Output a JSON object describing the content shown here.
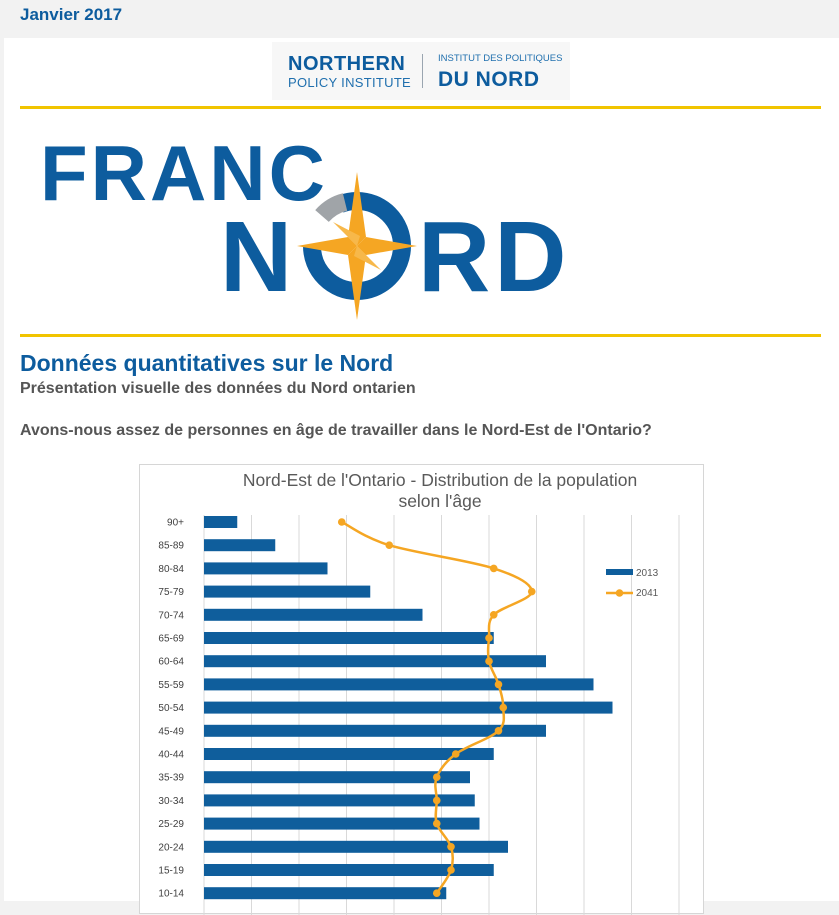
{
  "header": {
    "date": "Janvier 2017"
  },
  "logo": {
    "northern": "NORTHERN",
    "policy_institute": "POLICY INSTITUTE",
    "institut": "INSTITUT DES POLITIQUES",
    "du_nord": "DU NORD"
  },
  "brand": {
    "line1": "FRANC",
    "line2_left": "N",
    "line2_right": "RD"
  },
  "section": {
    "title": "Données quantitatives sur le Nord",
    "subtitle": "Présentation visuelle des données du Nord ontarien",
    "question": "Avons-nous assez de personnes en âge de travailler dans le Nord-Est de l'Ontario?"
  },
  "colors": {
    "blue": "#0d5c9e",
    "bar_blue": "#0f5e9c",
    "orange": "#f5a623",
    "yellow": "#f1c400",
    "gray_text": "#555555"
  },
  "chart_data": {
    "type": "bar",
    "orientation": "horizontal",
    "title_lines": [
      "Nord-Est de l'Ontario - Distribution de la population",
      "selon l'âge"
    ],
    "categories": [
      "90+",
      "85-89",
      "80-84",
      "75-79",
      "70-74",
      "65-69",
      "60-64",
      "55-59",
      "50-54",
      "45-49",
      "40-44",
      "35-39",
      "30-34",
      "25-29",
      "20-24",
      "15-19",
      "10-14"
    ],
    "series": [
      {
        "name": "2013",
        "type": "bar",
        "values": [
          0.7,
          1.5,
          2.6,
          3.5,
          4.6,
          6.1,
          7.2,
          8.2,
          8.6,
          7.2,
          6.1,
          5.6,
          5.7,
          5.8,
          6.4,
          6.1,
          5.1
        ]
      },
      {
        "name": "2041",
        "type": "line",
        "values": [
          2.9,
          3.9,
          6.1,
          6.9,
          6.1,
          6.0,
          6.0,
          6.2,
          6.3,
          6.2,
          5.3,
          4.9,
          4.9,
          4.9,
          5.2,
          5.2,
          4.9
        ]
      }
    ],
    "xlim": [
      0,
      10
    ],
    "grid": true,
    "legend_position": "right",
    "xlabel": "",
    "ylabel": ""
  }
}
